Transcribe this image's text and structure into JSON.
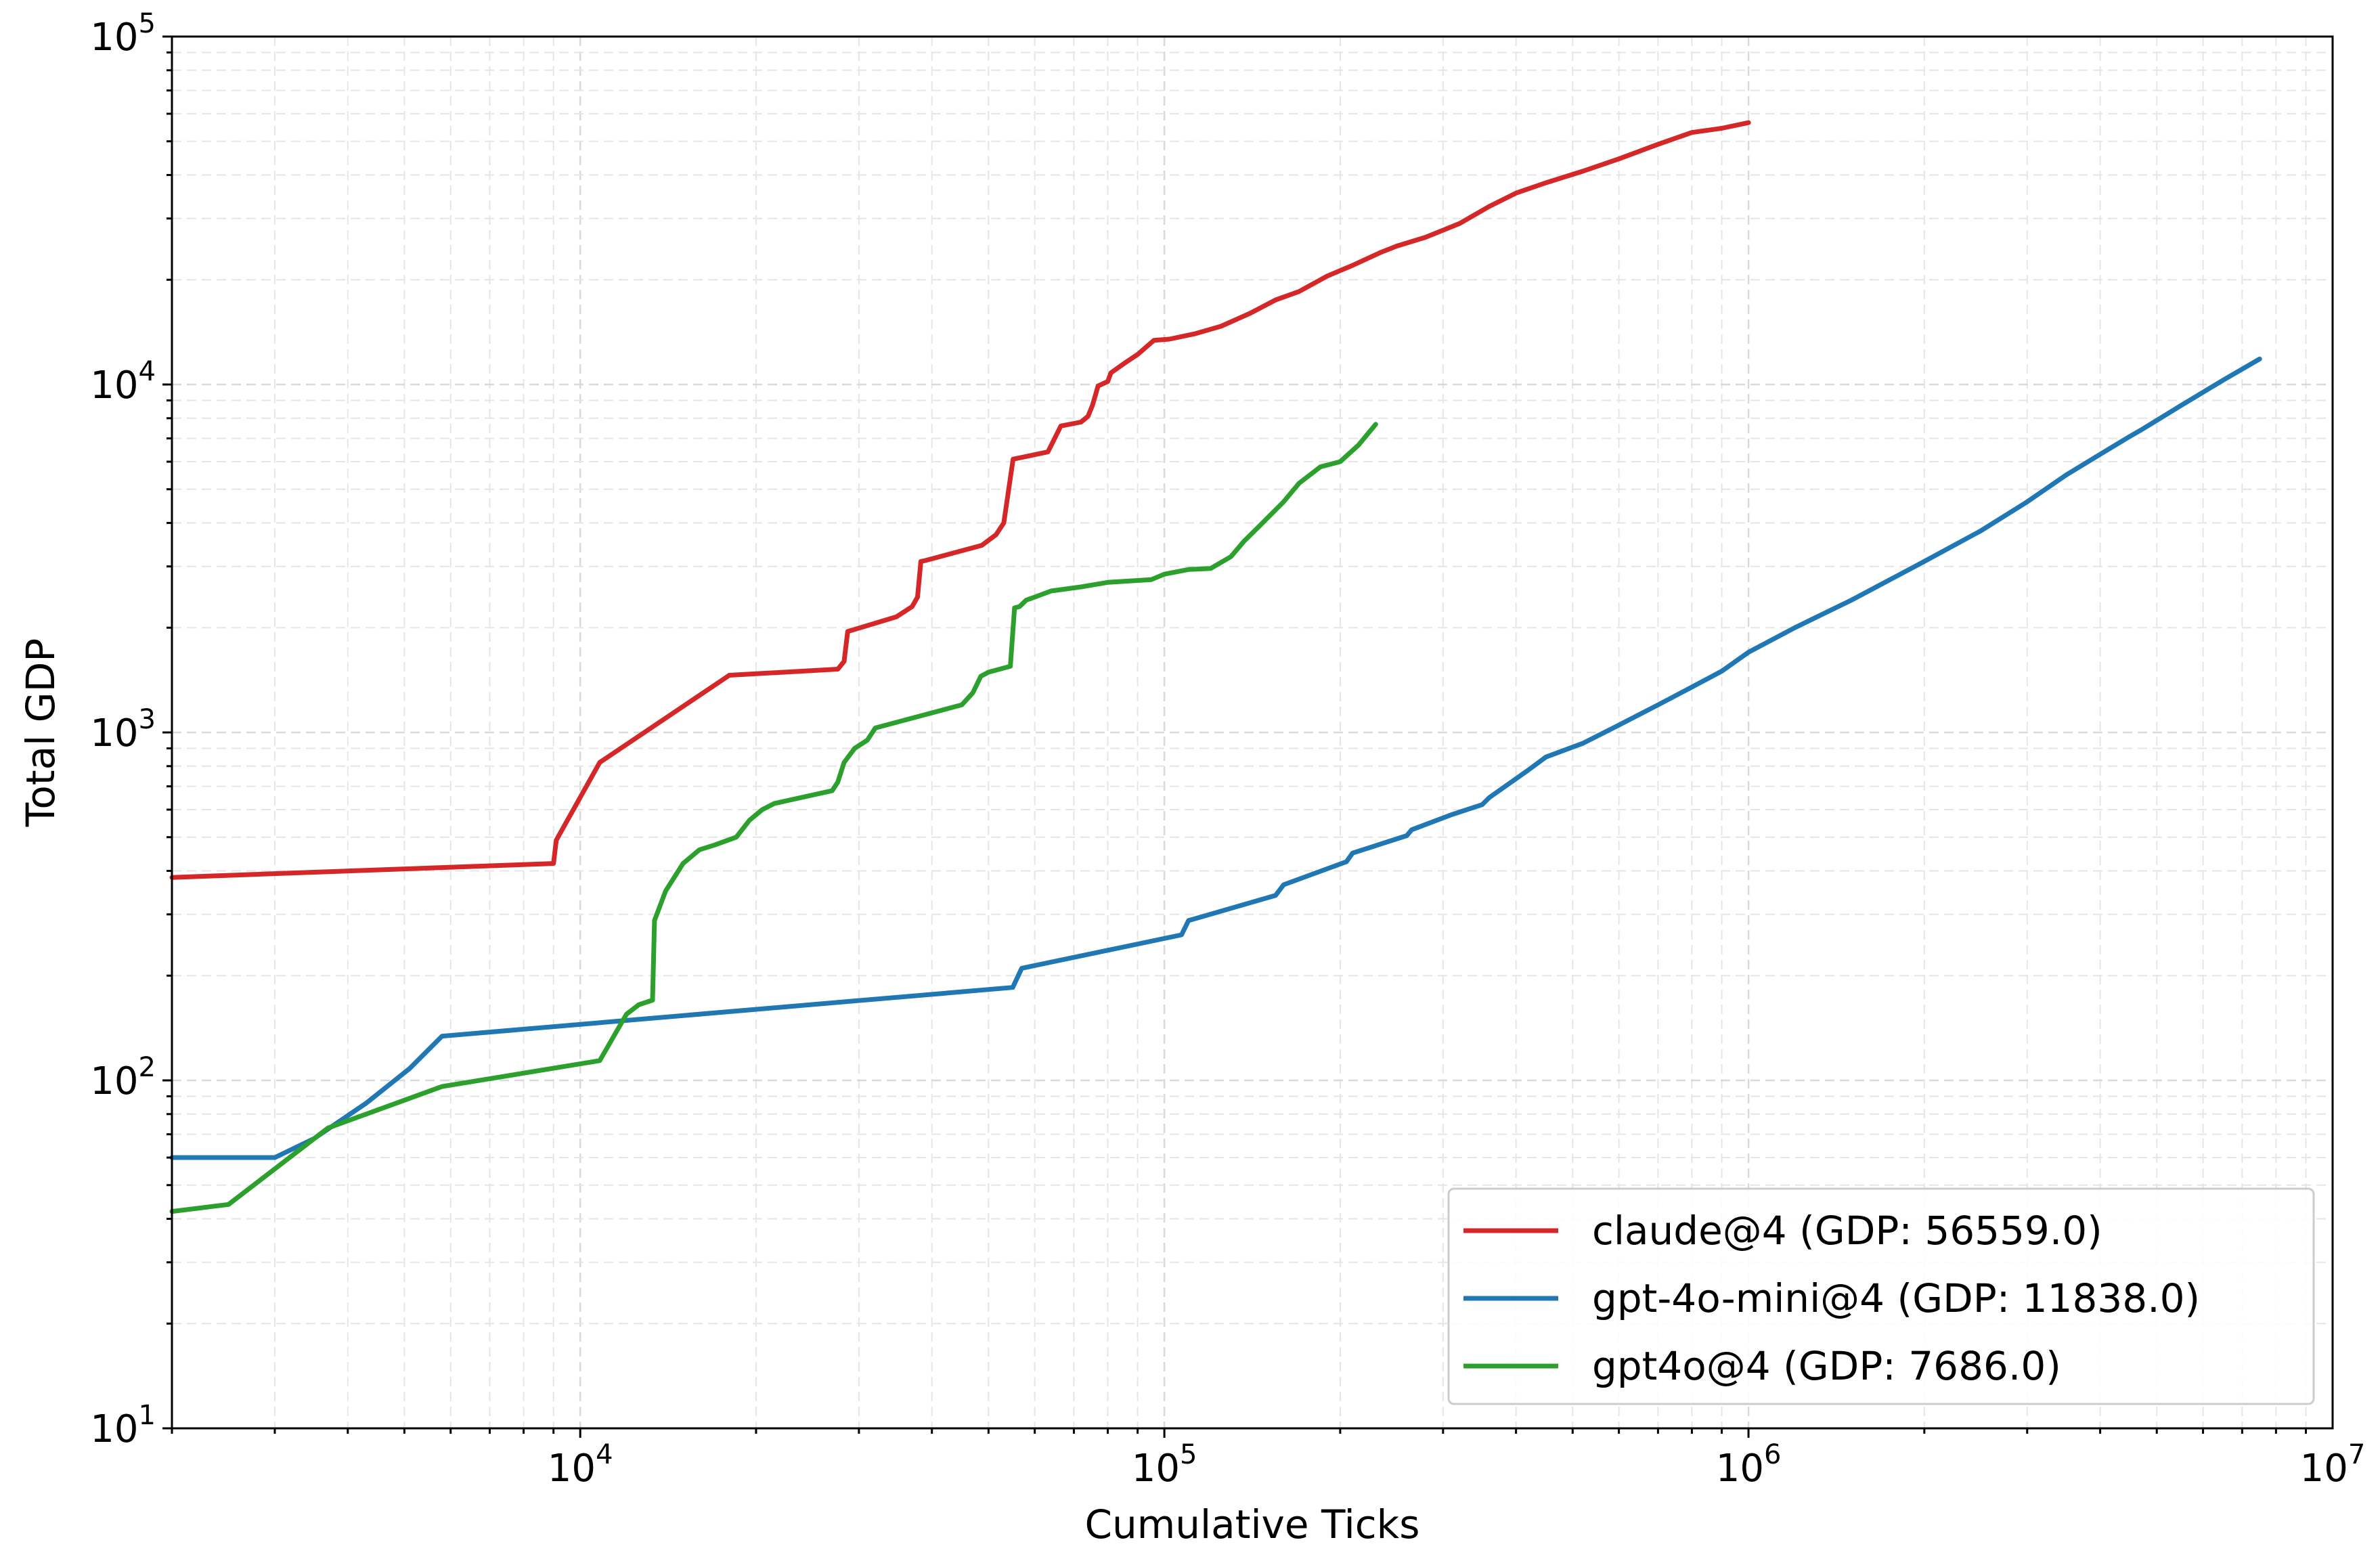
{
  "chart_data": {
    "type": "line",
    "xscale": "log",
    "yscale": "log",
    "xlabel": "Cumulative Ticks",
    "ylabel": "Total GDP",
    "xlim": [
      2000,
      10000000
    ],
    "ylim": [
      10,
      100000
    ],
    "grid": true,
    "legend_position": "lower-right",
    "x_ticks": [
      {
        "base": "10",
        "exp": "4",
        "value": 10000
      },
      {
        "base": "10",
        "exp": "5",
        "value": 100000
      },
      {
        "base": "10",
        "exp": "6",
        "value": 1000000
      },
      {
        "base": "10",
        "exp": "7",
        "value": 10000000
      }
    ],
    "y_ticks": [
      {
        "base": "10",
        "exp": "1",
        "value": 10
      },
      {
        "base": "10",
        "exp": "2",
        "value": 100
      },
      {
        "base": "10",
        "exp": "3",
        "value": 1000
      },
      {
        "base": "10",
        "exp": "4",
        "value": 10000
      },
      {
        "base": "10",
        "exp": "5",
        "value": 100000
      }
    ],
    "series": [
      {
        "name": "claude@4 (GDP: 56559.0)",
        "color": "#d62728",
        "x": [
          2000,
          9000,
          9100,
          10800,
          18000,
          27600,
          28300,
          28700,
          34800,
          37000,
          37800,
          38300,
          39000,
          48700,
          51500,
          53100,
          55100,
          63200,
          66500,
          72000,
          74000,
          75300,
          77000,
          80000,
          81000,
          86000,
          90000,
          96000,
          102000,
          113000,
          125000,
          140000,
          155000,
          170000,
          190000,
          210000,
          235000,
          250000,
          280000,
          320000,
          360000,
          400000,
          450000,
          520000,
          600000,
          700000,
          800000,
          900000,
          1000000
        ],
        "y": [
          383,
          420,
          490,
          820,
          1460,
          1520,
          1600,
          1950,
          2150,
          2300,
          2450,
          3100,
          3120,
          3450,
          3700,
          4000,
          6100,
          6400,
          7600,
          7800,
          8100,
          8700,
          9900,
          10200,
          10800,
          11600,
          12200,
          13400,
          13500,
          14000,
          14700,
          16000,
          17500,
          18500,
          20500,
          22000,
          24000,
          25000,
          26500,
          29000,
          32500,
          35500,
          38000,
          41000,
          44500,
          49000,
          53000,
          54500,
          56559
        ]
      },
      {
        "name": "gpt-4o-mini@4 (GDP: 11838.0)",
        "color": "#1f77b4",
        "x": [
          2000,
          3000,
          3500,
          4300,
          5100,
          5800,
          55000,
          57000,
          107000,
          110000,
          155000,
          160000,
          205000,
          210000,
          260000,
          265000,
          310000,
          350000,
          360000,
          420000,
          450000,
          520000,
          600000,
          700000,
          800000,
          900000,
          1000000,
          1200000,
          1500000,
          2000000,
          2500000,
          3000000,
          3500000,
          4000000,
          4500000,
          4700000,
          5500000,
          6500000,
          7500000
        ],
        "y": [
          60,
          60,
          68,
          86,
          108,
          134,
          185,
          210,
          262,
          288,
          340,
          365,
          425,
          450,
          505,
          525,
          580,
          620,
          650,
          780,
          850,
          930,
          1050,
          1200,
          1350,
          1500,
          1700,
          2000,
          2400,
          3100,
          3800,
          4600,
          5500,
          6300,
          7100,
          7400,
          8700,
          10300,
          11838
        ]
      },
      {
        "name": "gpt4o@4 (GDP: 7686.0)",
        "color": "#2ca02c",
        "x": [
          2000,
          2500,
          3700,
          5800,
          10800,
          12000,
          12600,
          13300,
          13400,
          14000,
          15000,
          16000,
          17000,
          18500,
          19500,
          20500,
          21500,
          27000,
          27600,
          28300,
          29500,
          31000,
          32000,
          45000,
          47000,
          48500,
          50000,
          54500,
          55400,
          56500,
          58000,
          60000,
          64000,
          72000,
          80000,
          95000,
          100000,
          110000,
          120000,
          130000,
          137000,
          145000,
          160000,
          170000,
          185000,
          200000,
          215000,
          230000
        ],
        "y": [
          42,
          44,
          73,
          96,
          114,
          155,
          165,
          170,
          288,
          350,
          420,
          460,
          475,
          500,
          560,
          600,
          625,
          680,
          720,
          820,
          900,
          950,
          1030,
          1200,
          1300,
          1450,
          1490,
          1550,
          2280,
          2300,
          2400,
          2450,
          2550,
          2620,
          2700,
          2750,
          2850,
          2940,
          2960,
          3200,
          3550,
          3900,
          4600,
          5200,
          5800,
          6000,
          6700,
          7686
        ]
      }
    ]
  }
}
